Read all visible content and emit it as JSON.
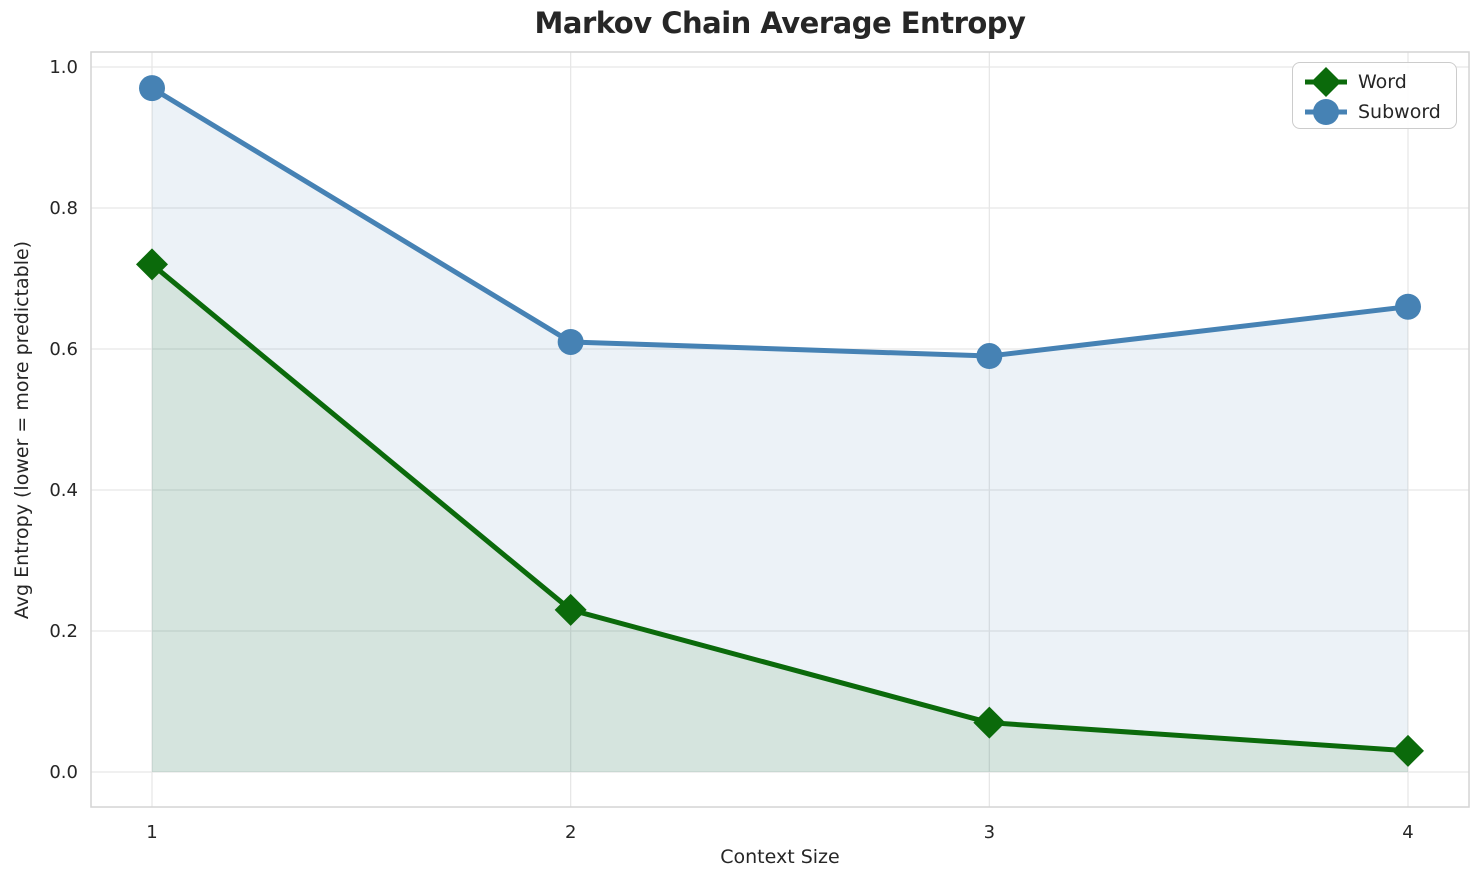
{
  "chart_data": {
    "type": "line",
    "title": "Markov Chain Average Entropy",
    "xlabel": "Context Size",
    "ylabel": "Avg Entropy (lower = more predictable)",
    "x": [
      1,
      2,
      3,
      4
    ],
    "xticks": [
      1,
      2,
      3,
      4
    ],
    "yticks": [
      0.0,
      0.2,
      0.4,
      0.6,
      0.8,
      1.0
    ],
    "ylim": [
      0.0,
      1.0
    ],
    "grid": true,
    "legend_position": "upper right",
    "series": [
      {
        "name": "Word",
        "marker": "diamond",
        "color": "#0b6a0b",
        "fill_to_zero": true,
        "values": [
          0.72,
          0.23,
          0.07,
          0.03
        ]
      },
      {
        "name": "Subword",
        "marker": "circle",
        "color": "#4682b4",
        "fill_to_zero": true,
        "values": [
          0.97,
          0.61,
          0.59,
          0.66
        ]
      }
    ],
    "style": {
      "grid_color": "#e7e7e7",
      "spine_color": "#d4d4d4",
      "text_color": "#262626",
      "fill_opacity": 0.1,
      "line_width": 5
    }
  }
}
